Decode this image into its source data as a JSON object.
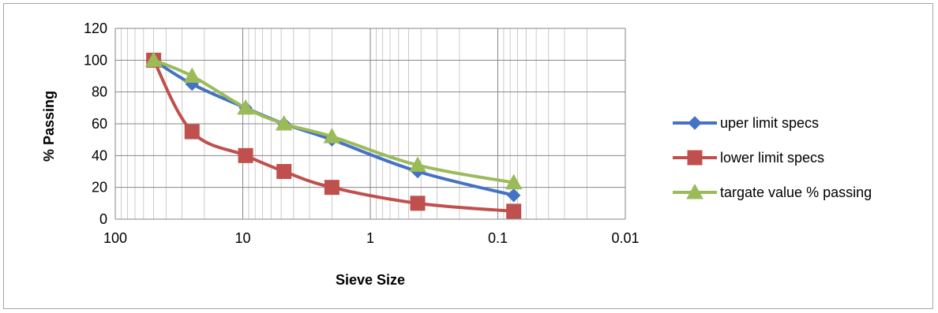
{
  "chart_data": {
    "type": "line",
    "title": "",
    "xlabel": "Sieve Size",
    "ylabel": "% Passing",
    "x_scale": "log",
    "x_reversed": true,
    "xlim": [
      100,
      0.01
    ],
    "ylim": [
      0,
      120
    ],
    "y_ticks": [
      0,
      20,
      40,
      60,
      80,
      100,
      120
    ],
    "x_ticks": [
      100,
      10,
      1,
      0.1,
      0.01
    ],
    "x_tick_labels": [
      "100",
      "10",
      "1",
      "0.1",
      "0.01"
    ],
    "grid": true,
    "legend_position": "right",
    "series": [
      {
        "name": "uper limit specs",
        "color": "#4472c4",
        "marker": "diamond",
        "x": [
          50,
          25,
          9.5,
          4.75,
          2,
          0.425,
          0.075
        ],
        "y": [
          100,
          85,
          70,
          60,
          50,
          30,
          15
        ]
      },
      {
        "name": "lower limit specs",
        "color": "#c0504d",
        "marker": "square",
        "x": [
          50,
          25,
          9.5,
          4.75,
          2,
          0.425,
          0.075
        ],
        "y": [
          100,
          55,
          40,
          30,
          20,
          10,
          5
        ]
      },
      {
        "name": "targate value % passing",
        "color": "#9bbb59",
        "marker": "triangle",
        "x": [
          50,
          25,
          9.5,
          4.75,
          2,
          0.425,
          0.075
        ],
        "y": [
          100,
          90,
          70,
          60,
          52,
          34,
          23
        ]
      }
    ]
  }
}
